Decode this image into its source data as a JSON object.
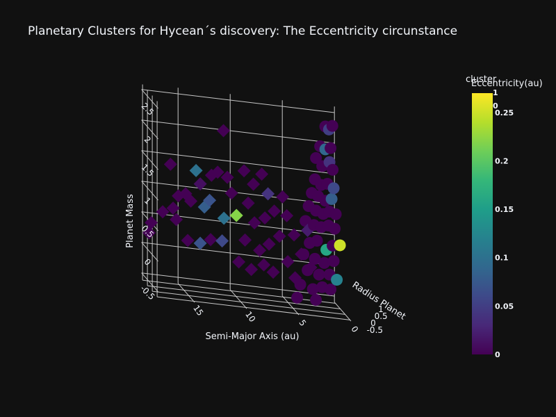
{
  "chart_data": {
    "type": "scatter",
    "title": "Planetary Clusters for Hycean´s discovery: The Eccentricity circunstance",
    "scene": {
      "x_axis": {
        "label": "Semi-Major Axis (au)",
        "ticks": [
          "15",
          "10",
          "5",
          "0"
        ]
      },
      "y_axis": {
        "label": "Radius Planet",
        "ticks": [
          "-0.5",
          "0",
          "0.5",
          "1"
        ]
      },
      "z_axis": {
        "label": "Planet Mass",
        "ticks": [
          "-0.5",
          "0",
          "0.5",
          "1",
          "1.5",
          "2",
          "2.5"
        ]
      },
      "grid": true
    },
    "colorbar": {
      "title": "Eccentricity(au)",
      "colorscale": "viridis",
      "range": [
        0,
        0.27
      ],
      "ticks": [
        "0",
        "0.05",
        "0.1",
        "0.15",
        "0.2",
        "0.25"
      ]
    },
    "cluster_colorbar": {
      "title": "cluster",
      "ticks": [
        "1",
        "0"
      ]
    },
    "marker_symbols": {
      "circle": "cluster 0",
      "diamond": "cluster 1"
    },
    "points": [
      {
        "a": 11.7,
        "r": -0.03,
        "m": 2.17,
        "e": 0.0,
        "s": "diamond"
      },
      {
        "a": 16.8,
        "r": -0.05,
        "m": 1.52,
        "e": 0.0,
        "s": "diamond"
      },
      {
        "a": 14.3,
        "r": 0.0,
        "m": 1.46,
        "e": 0.1,
        "s": "diamond"
      },
      {
        "a": 12.8,
        "r": 0.02,
        "m": 1.41,
        "e": 0.0,
        "s": "diamond"
      },
      {
        "a": 12.2,
        "r": 0.03,
        "m": 1.47,
        "e": 0.0,
        "s": "diamond"
      },
      {
        "a": 11.3,
        "r": 0.0,
        "m": 1.41,
        "e": 0.0,
        "s": "diamond"
      },
      {
        "a": 13.9,
        "r": 0.0,
        "m": 1.25,
        "e": 0.01,
        "s": "diamond"
      },
      {
        "a": 16.0,
        "r": 0.0,
        "m": 1.01,
        "e": 0.0,
        "s": "diamond"
      },
      {
        "a": 15.3,
        "r": 0.0,
        "m": 1.06,
        "e": 0.0,
        "s": "diamond"
      },
      {
        "a": 13.0,
        "r": 0.0,
        "m": 1.0,
        "e": 0.07,
        "s": "diamond"
      },
      {
        "a": 13.5,
        "r": 0.0,
        "m": 0.88,
        "e": 0.08,
        "s": "diamond"
      },
      {
        "a": 10.9,
        "r": 0.0,
        "m": 1.16,
        "e": 0.0,
        "s": "diamond"
      },
      {
        "a": 11.6,
        "r": 0.03,
        "m": 0.73,
        "e": 0.1,
        "s": "diamond"
      },
      {
        "a": 10.4,
        "r": 0.03,
        "m": 0.8,
        "e": 0.22,
        "s": "diamond"
      },
      {
        "a": 17.5,
        "r": 0.0,
        "m": 0.72,
        "e": 0.0,
        "s": "diamond"
      },
      {
        "a": 16.5,
        "r": 0.0,
        "m": 0.8,
        "e": 0.0,
        "s": "diamond"
      },
      {
        "a": 16.2,
        "r": 0.0,
        "m": 0.62,
        "e": 0.0,
        "s": "diamond"
      },
      {
        "a": 14.8,
        "r": 0.0,
        "m": 0.95,
        "e": 0.0,
        "s": "diamond"
      },
      {
        "a": 13.9,
        "r": 0.0,
        "m": 0.28,
        "e": 0.07,
        "s": "diamond"
      },
      {
        "a": 15.1,
        "r": 0.0,
        "m": 0.3,
        "e": 0.0,
        "s": "diamond"
      },
      {
        "a": 12.9,
        "r": 0.0,
        "m": 0.36,
        "e": 0.0,
        "s": "diamond"
      },
      {
        "a": 11.8,
        "r": 0.0,
        "m": 0.36,
        "e": 0.06,
        "s": "diamond"
      },
      {
        "a": 18.6,
        "r": 0.0,
        "m": 0.52,
        "e": 0.0,
        "s": "diamond"
      },
      {
        "a": 18.8,
        "r": 0.0,
        "m": 0.35,
        "e": 0.0,
        "s": "diamond"
      },
      {
        "a": 9.7,
        "r": 0.0,
        "m": 1.55,
        "e": 0.0,
        "s": "diamond"
      },
      {
        "a": 8.8,
        "r": 0.0,
        "m": 1.35,
        "e": 0.0,
        "s": "diamond"
      },
      {
        "a": 8.0,
        "r": 0.0,
        "m": 1.53,
        "e": 0.0,
        "s": "diamond"
      },
      {
        "a": 7.4,
        "r": 0.0,
        "m": 1.22,
        "e": 0.04,
        "s": "diamond"
      },
      {
        "a": 9.3,
        "r": 0.0,
        "m": 1.03,
        "e": 0.0,
        "s": "diamond"
      },
      {
        "a": 8.7,
        "r": 0.0,
        "m": 0.72,
        "e": 0.0,
        "s": "diamond"
      },
      {
        "a": 7.7,
        "r": 0.0,
        "m": 0.82,
        "e": 0.0,
        "s": "diamond"
      },
      {
        "a": 6.8,
        "r": 0.0,
        "m": 0.95,
        "e": 0.0,
        "s": "diamond"
      },
      {
        "a": 6.0,
        "r": 0.0,
        "m": 1.2,
        "e": 0.0,
        "s": "diamond"
      },
      {
        "a": 9.6,
        "r": 0.0,
        "m": 0.42,
        "e": 0.0,
        "s": "diamond"
      },
      {
        "a": 8.2,
        "r": 0.0,
        "m": 0.28,
        "e": 0.0,
        "s": "diamond"
      },
      {
        "a": 7.3,
        "r": 0.0,
        "m": 0.4,
        "e": 0.0,
        "s": "diamond"
      },
      {
        "a": 6.3,
        "r": 0.0,
        "m": 0.55,
        "e": 0.0,
        "s": "diamond"
      },
      {
        "a": 10.2,
        "r": 0.0,
        "m": 0.05,
        "e": 0.0,
        "s": "diamond"
      },
      {
        "a": 9.0,
        "r": 0.0,
        "m": -0.05,
        "e": 0.0,
        "s": "diamond"
      },
      {
        "a": 7.8,
        "r": 0.0,
        "m": 0.05,
        "e": 0.0,
        "s": "diamond"
      },
      {
        "a": 6.9,
        "r": 0.0,
        "m": -0.05,
        "e": 0.0,
        "s": "diamond"
      },
      {
        "a": 5.5,
        "r": 0.0,
        "m": 0.15,
        "e": 0.0,
        "s": "diamond"
      },
      {
        "a": 4.8,
        "r": 0.0,
        "m": -0.1,
        "e": 0.0,
        "s": "diamond"
      },
      {
        "a": 5.6,
        "r": 0.0,
        "m": 0.9,
        "e": 0.0,
        "s": "diamond"
      },
      {
        "a": 4.9,
        "r": 0.0,
        "m": 0.6,
        "e": 0.0,
        "s": "diamond"
      },
      {
        "a": 4.2,
        "r": 0.0,
        "m": 0.3,
        "e": 0.0,
        "s": "diamond"
      },
      {
        "a": 3.6,
        "r": 0.0,
        "m": 0.7,
        "e": 0.02,
        "s": "diamond"
      },
      {
        "a": 3.3,
        "r": 0.0,
        "m": 0.1,
        "e": 0.0,
        "s": "diamond"
      },
      {
        "a": 2.0,
        "r": -0.1,
        "m": 2.45,
        "e": 0.0,
        "s": "circle"
      },
      {
        "a": 1.6,
        "r": -0.05,
        "m": 2.4,
        "e": 0.05,
        "s": "circle"
      },
      {
        "a": 1.3,
        "r": -0.08,
        "m": 2.47,
        "e": 0.0,
        "s": "circle"
      },
      {
        "a": 2.4,
        "r": 0.0,
        "m": 2.1,
        "e": 0.0,
        "s": "circle"
      },
      {
        "a": 1.9,
        "r": 0.0,
        "m": 2.06,
        "e": 0.09,
        "s": "circle"
      },
      {
        "a": 1.4,
        "r": 0.0,
        "m": 2.09,
        "e": 0.0,
        "s": "circle"
      },
      {
        "a": 2.8,
        "r": 0.0,
        "m": 1.9,
        "e": 0.0,
        "s": "circle"
      },
      {
        "a": 2.2,
        "r": 0.0,
        "m": 1.78,
        "e": 0.0,
        "s": "circle"
      },
      {
        "a": 1.5,
        "r": 0.0,
        "m": 1.86,
        "e": 0.04,
        "s": "circle"
      },
      {
        "a": 1.2,
        "r": 0.0,
        "m": 1.74,
        "e": 0.0,
        "s": "circle"
      },
      {
        "a": 2.9,
        "r": 0.0,
        "m": 1.55,
        "e": 0.0,
        "s": "circle"
      },
      {
        "a": 2.3,
        "r": 0.0,
        "m": 1.47,
        "e": 0.0,
        "s": "circle"
      },
      {
        "a": 1.7,
        "r": 0.0,
        "m": 1.5,
        "e": 0.0,
        "s": "circle"
      },
      {
        "a": 1.1,
        "r": 0.0,
        "m": 1.44,
        "e": 0.06,
        "s": "circle"
      },
      {
        "a": 3.2,
        "r": 0.0,
        "m": 1.32,
        "e": 0.0,
        "s": "circle"
      },
      {
        "a": 2.6,
        "r": 0.0,
        "m": 1.28,
        "e": 0.0,
        "s": "circle"
      },
      {
        "a": 1.9,
        "r": 0.0,
        "m": 1.22,
        "e": 0.0,
        "s": "circle"
      },
      {
        "a": 1.3,
        "r": 0.0,
        "m": 1.26,
        "e": 0.08,
        "s": "circle"
      },
      {
        "a": 3.5,
        "r": 0.0,
        "m": 1.1,
        "e": 0.0,
        "s": "circle"
      },
      {
        "a": 2.8,
        "r": 0.0,
        "m": 1.04,
        "e": 0.0,
        "s": "circle"
      },
      {
        "a": 2.1,
        "r": 0.0,
        "m": 1.0,
        "e": 0.0,
        "s": "circle"
      },
      {
        "a": 1.5,
        "r": 0.0,
        "m": 1.05,
        "e": 0.0,
        "s": "circle"
      },
      {
        "a": 0.9,
        "r": 0.0,
        "m": 1.02,
        "e": 0.0,
        "s": "circle"
      },
      {
        "a": 3.8,
        "r": 0.0,
        "m": 0.85,
        "e": 0.0,
        "s": "circle"
      },
      {
        "a": 3.0,
        "r": 0.0,
        "m": 0.8,
        "e": 0.0,
        "s": "circle"
      },
      {
        "a": 2.3,
        "r": 0.0,
        "m": 0.78,
        "e": 0.0,
        "s": "circle"
      },
      {
        "a": 1.6,
        "r": 0.0,
        "m": 0.82,
        "e": 0.0,
        "s": "circle"
      },
      {
        "a": 1.0,
        "r": 0.0,
        "m": 0.78,
        "e": 0.0,
        "s": "circle"
      },
      {
        "a": 0.5,
        "r": 0.0,
        "m": 0.52,
        "e": 0.25,
        "s": "circle"
      },
      {
        "a": 1.8,
        "r": 0.0,
        "m": 0.42,
        "e": 0.16,
        "s": "circle"
      },
      {
        "a": 2.7,
        "r": 0.0,
        "m": 0.55,
        "e": 0.0,
        "s": "circle"
      },
      {
        "a": 3.4,
        "r": 0.0,
        "m": 0.5,
        "e": 0.0,
        "s": "circle"
      },
      {
        "a": 1.2,
        "r": 0.0,
        "m": 0.5,
        "e": 0.0,
        "s": "circle"
      },
      {
        "a": 4.0,
        "r": 0.0,
        "m": 0.3,
        "e": 0.0,
        "s": "circle"
      },
      {
        "a": 2.9,
        "r": 0.0,
        "m": 0.25,
        "e": 0.0,
        "s": "circle"
      },
      {
        "a": 2.0,
        "r": 0.0,
        "m": 0.2,
        "e": 0.0,
        "s": "circle"
      },
      {
        "a": 1.1,
        "r": 0.0,
        "m": 0.25,
        "e": 0.0,
        "s": "circle"
      },
      {
        "a": 3.6,
        "r": 0.0,
        "m": 0.05,
        "e": 0.0,
        "s": "circle"
      },
      {
        "a": 2.5,
        "r": 0.0,
        "m": 0.0,
        "e": 0.0,
        "s": "circle"
      },
      {
        "a": 1.5,
        "r": 0.0,
        "m": 0.02,
        "e": 0.0,
        "s": "circle"
      },
      {
        "a": 0.8,
        "r": 0.0,
        "m": -0.05,
        "e": 0.12,
        "s": "circle"
      },
      {
        "a": 4.3,
        "r": 0.0,
        "m": -0.2,
        "e": 0.0,
        "s": "circle"
      },
      {
        "a": 3.1,
        "r": 0.0,
        "m": -0.25,
        "e": 0.0,
        "s": "circle"
      },
      {
        "a": 2.2,
        "r": 0.0,
        "m": -0.2,
        "e": 0.0,
        "s": "circle"
      },
      {
        "a": 1.4,
        "r": 0.0,
        "m": -0.22,
        "e": 0.0,
        "s": "circle"
      },
      {
        "a": 4.6,
        "r": 0.0,
        "m": -0.42,
        "e": 0.0,
        "s": "circle"
      },
      {
        "a": 2.8,
        "r": 0.0,
        "m": -0.42,
        "e": 0.0,
        "s": "circle"
      }
    ]
  }
}
